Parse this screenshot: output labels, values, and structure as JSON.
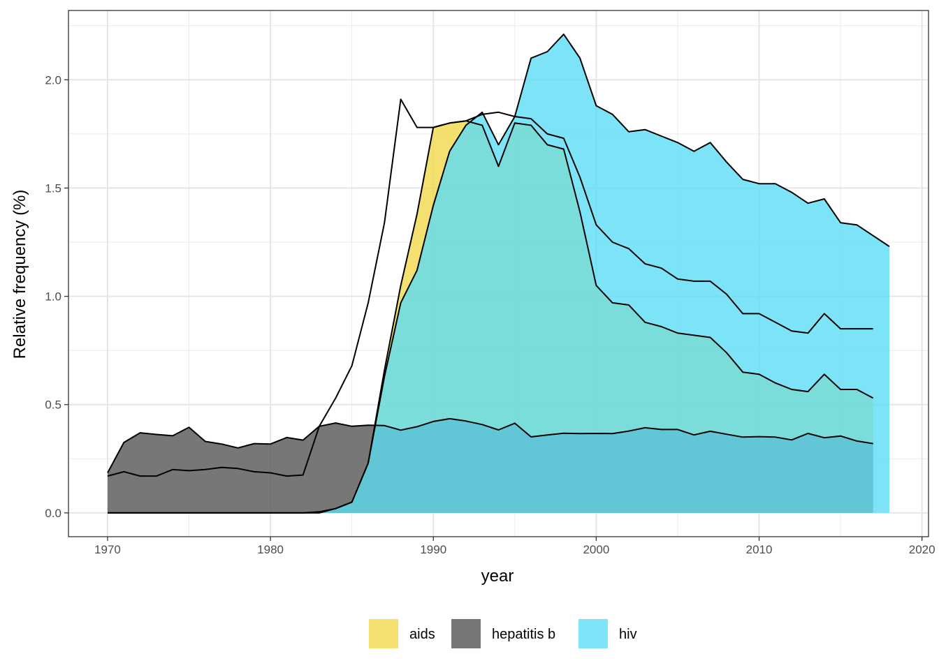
{
  "chart_data": {
    "type": "area",
    "xlabel": "year",
    "ylabel": "Relative frequency (%)",
    "xlim": [
      1967.6,
      2020.4
    ],
    "ylim": [
      -0.11,
      2.32
    ],
    "x_ticks": [
      1970,
      1980,
      1990,
      2000,
      2010,
      2020
    ],
    "y_ticks": [
      0.0,
      0.5,
      1.0,
      1.5,
      2.0
    ],
    "y_tick_labels": [
      "0.0",
      "0.5",
      "1.0",
      "1.5",
      "2.0"
    ],
    "grid": true,
    "legend_position": "bottom",
    "stacked": false,
    "series": [
      {
        "name": "aids",
        "color": "#f0d84a",
        "x": [
          1970,
          1971,
          1972,
          1973,
          1974,
          1975,
          1976,
          1977,
          1978,
          1979,
          1980,
          1981,
          1982,
          1983,
          1984,
          1985,
          1986,
          1987,
          1988,
          1989,
          1990,
          1991,
          1992,
          1993,
          1994,
          1995,
          1996,
          1997,
          1998,
          1999,
          2000,
          2001,
          2002,
          2003,
          2004,
          2005,
          2006,
          2007,
          2008,
          2009,
          2010,
          2011,
          2012,
          2013,
          2014,
          2015,
          2016,
          2017
        ],
        "values": [
          0,
          0,
          0,
          0,
          0,
          0,
          0,
          0,
          0,
          0,
          0,
          0,
          0,
          0.005,
          0.02,
          0.05,
          0.23,
          0.66,
          1.05,
          1.38,
          1.78,
          1.8,
          1.81,
          1.79,
          1.6,
          1.8,
          1.79,
          1.7,
          1.68,
          1.39,
          1.05,
          0.97,
          0.96,
          0.88,
          0.86,
          0.83,
          0.82,
          0.81,
          0.74,
          0.65,
          0.64,
          0.6,
          0.57,
          0.56,
          0.64,
          0.57,
          0.57,
          0.53
        ]
      },
      {
        "name": "hepatitis b",
        "color": "#555555",
        "x": [
          1970,
          1971,
          1972,
          1973,
          1974,
          1975,
          1976,
          1977,
          1978,
          1979,
          1980,
          1981,
          1982,
          1983,
          1984,
          1985,
          1986,
          1987,
          1988,
          1989,
          1990,
          1991,
          1992,
          1993,
          1994,
          1995,
          1996,
          1997,
          1998,
          1999,
          2000,
          2001,
          2002,
          2003,
          2004,
          2005,
          2006,
          2007,
          2008,
          2009,
          2010,
          2011,
          2012,
          2013,
          2014,
          2015,
          2016,
          2017
        ],
        "values": [
          0.185,
          0.325,
          0.37,
          0.362,
          0.356,
          0.395,
          0.33,
          0.318,
          0.3,
          0.32,
          0.318,
          0.348,
          0.336,
          0.4,
          0.415,
          0.4,
          0.405,
          0.403,
          0.382,
          0.398,
          0.422,
          0.435,
          0.424,
          0.408,
          0.383,
          0.414,
          0.351,
          0.36,
          0.368,
          0.366,
          0.367,
          0.366,
          0.378,
          0.393,
          0.385,
          0.385,
          0.36,
          0.377,
          0.363,
          0.35,
          0.352,
          0.35,
          0.337,
          0.367,
          0.347,
          0.355,
          0.332,
          0.32
        ]
      },
      {
        "name": "hiv",
        "color": "#5ddcf5",
        "x": [
          1970,
          1971,
          1972,
          1973,
          1974,
          1975,
          1976,
          1977,
          1978,
          1979,
          1980,
          1981,
          1982,
          1983,
          1984,
          1985,
          1986,
          1987,
          1988,
          1989,
          1990,
          1991,
          1992,
          1993,
          1994,
          1995,
          1996,
          1997,
          1998,
          1999,
          2000,
          2001,
          2002,
          2003,
          2004,
          2005,
          2006,
          2007,
          2008,
          2009,
          2010,
          2011,
          2012,
          2013,
          2014,
          2015,
          2016,
          2017,
          2018
        ],
        "values": [
          0,
          0,
          0,
          0,
          0,
          0,
          0,
          0,
          0,
          0,
          0,
          0,
          0,
          0,
          0.02,
          0.05,
          0.23,
          0.63,
          0.97,
          1.12,
          1.42,
          1.67,
          1.79,
          1.85,
          1.7,
          1.83,
          2.1,
          2.13,
          2.21,
          2.1,
          1.88,
          1.84,
          1.76,
          1.77,
          1.74,
          1.71,
          1.67,
          1.71,
          1.62,
          1.54,
          1.52,
          1.52,
          1.48,
          1.43,
          1.45,
          1.34,
          1.33,
          1.28,
          1.23
        ]
      }
    ],
    "outlines": [
      {
        "name": "hepatitis b + aids",
        "values": [
          0.17,
          0.19,
          0.17,
          0.17,
          0.2,
          0.195,
          0.2,
          0.21,
          0.205,
          0.19,
          0.185,
          0.17,
          0.175,
          0.4,
          0.53,
          0.68,
          0.97,
          1.34,
          1.91,
          1.78,
          1.78,
          1.8,
          1.81,
          1.84,
          1.85,
          1.83,
          1.82,
          1.75,
          1.73,
          1.55,
          1.33,
          1.25,
          1.22,
          1.15,
          1.13,
          1.08,
          1.07,
          1.07,
          1.01,
          0.92,
          0.92,
          0.88,
          0.84,
          0.83,
          0.92,
          0.85,
          0.85,
          0.85
        ]
      }
    ]
  }
}
